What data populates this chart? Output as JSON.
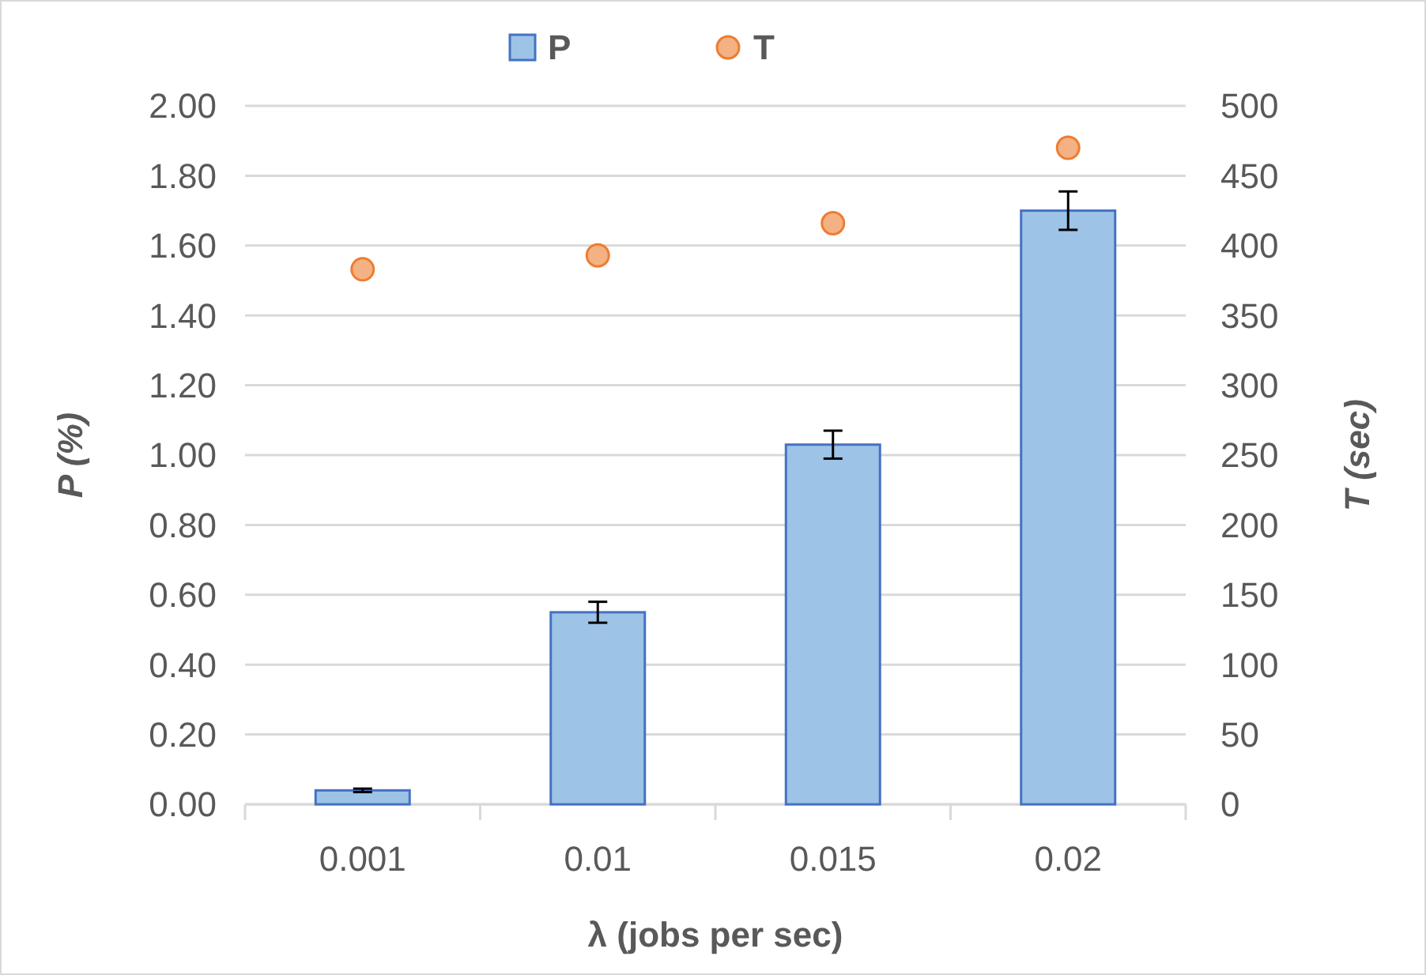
{
  "chart_data": {
    "type": "bar",
    "categories": [
      "0.001",
      "0.01",
      "0.015",
      "0.02"
    ],
    "xlabel": "λ (jobs per sec)",
    "ylabel": "P (%)",
    "y2label": "T (sec)",
    "ylim": [
      0,
      2
    ],
    "yticks": [
      {
        "value": 0,
        "label": "0.00"
      },
      {
        "value": 0.2,
        "label": "0.20"
      },
      {
        "value": 0.4,
        "label": "0.40"
      },
      {
        "value": 0.6,
        "label": "0.60"
      },
      {
        "value": 0.8,
        "label": "0.80"
      },
      {
        "value": 1,
        "label": "1.00"
      },
      {
        "value": 1.2,
        "label": "1.20"
      },
      {
        "value": 1.4,
        "label": "1.40"
      },
      {
        "value": 1.6,
        "label": "1.60"
      },
      {
        "value": 1.8,
        "label": "1.80"
      },
      {
        "value": 2,
        "label": "2.00"
      }
    ],
    "y2lim": [
      0,
      500
    ],
    "y2ticks": [
      0,
      50,
      100,
      150,
      200,
      250,
      300,
      350,
      400,
      450,
      500
    ],
    "grid": "y",
    "legend": "top",
    "series": [
      {
        "name": "P",
        "color": "#9dc3e6",
        "values": [
          0.04,
          0.55,
          1.03,
          1.7
        ],
        "errors": [
          0.005,
          0.03,
          0.04,
          0.055
        ]
      },
      {
        "name": "T",
        "type": "scatter",
        "axis": "y2",
        "color": "#f4b183",
        "marker": "circle",
        "values": [
          383,
          393,
          416,
          470
        ]
      }
    ]
  }
}
